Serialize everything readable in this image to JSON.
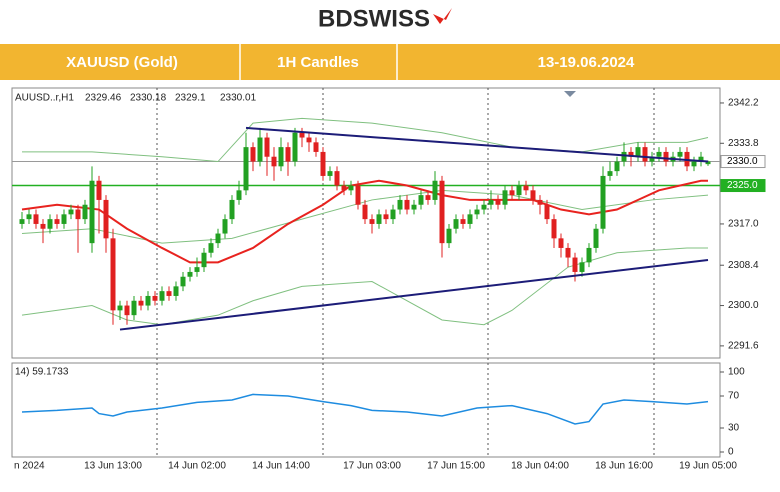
{
  "header": {
    "logo": "BDSWISS",
    "tabs": [
      "XAUUSD (Gold)",
      "1H Candles",
      "13-19.06.2024"
    ]
  },
  "chart_data": {
    "type": "candlestick",
    "symbol": "AUUSD..r,H1",
    "categories": [
      "n 2024",
      null,
      null,
      null,
      null,
      null,
      null,
      null,
      null,
      null,
      null,
      null,
      null,
      "13 Jun 13:00",
      null,
      null,
      null,
      null,
      null,
      null,
      null,
      null,
      null,
      null,
      null,
      "14 Jun 02:00",
      null,
      null,
      null,
      null,
      null,
      null,
      null,
      null,
      null,
      null,
      null,
      "14 Jun 14:00",
      null,
      null,
      null,
      null,
      null,
      null,
      null,
      null,
      null,
      null,
      null,
      null,
      "17 Jun 03:00",
      null,
      null,
      null,
      null,
      null,
      null,
      null,
      null,
      null,
      null,
      null,
      "17 Jun 15:00",
      null,
      null,
      null,
      null,
      null,
      null,
      null,
      null,
      null,
      null,
      null,
      "18 Jun 04:00",
      null,
      null,
      null,
      null,
      null,
      null,
      null,
      null,
      null,
      null,
      null,
      "18 Jun 16:00",
      null,
      null,
      null,
      null,
      null,
      null,
      null,
      null,
      null,
      null,
      null,
      "19 Jun 05:00"
    ],
    "ohlc": [
      [
        2317,
        2319.5,
        2316,
        2318
      ],
      [
        2318,
        2320,
        2317,
        2319
      ],
      [
        2319,
        2320,
        2316,
        2317
      ],
      [
        2317,
        2318,
        2313,
        2316
      ],
      [
        2316,
        2319,
        2315,
        2318
      ],
      [
        2318,
        2319,
        2316,
        2317
      ],
      [
        2317,
        2320,
        2316,
        2319
      ],
      [
        2319,
        2321,
        2318,
        2320
      ],
      [
        2320,
        2321,
        2311,
        2318
      ],
      [
        2318,
        2322,
        2317,
        2321
      ],
      [
        2313,
        2329,
        2311,
        2326
      ],
      [
        2326,
        2327,
        2315,
        2322
      ],
      [
        2322,
        2323,
        2311,
        2314
      ],
      [
        2314,
        2316,
        2296,
        2299
      ],
      [
        2299,
        2301,
        2297,
        2300
      ],
      [
        2300,
        2301,
        2296,
        2298
      ],
      [
        2298,
        2302,
        2297,
        2301
      ],
      [
        2301,
        2302,
        2299,
        2300
      ],
      [
        2300,
        2303,
        2299,
        2302
      ],
      [
        2302,
        2303,
        2300,
        2301
      ],
      [
        2301,
        2304,
        2300,
        2303
      ],
      [
        2303,
        2304,
        2301,
        2302
      ],
      [
        2302,
        2305,
        2301,
        2304
      ],
      [
        2304,
        2307,
        2303,
        2306
      ],
      [
        2306,
        2308,
        2305,
        2307
      ],
      [
        2307,
        2310,
        2306,
        2308
      ],
      [
        2308,
        2312,
        2307,
        2311
      ],
      [
        2311,
        2314,
        2310,
        2313
      ],
      [
        2313,
        2316,
        2312,
        2315
      ],
      [
        2315,
        2319,
        2314,
        2318
      ],
      [
        2318,
        2323,
        2317,
        2322
      ],
      [
        2322,
        2326,
        2321,
        2324
      ],
      [
        2324,
        2336,
        2323,
        2333
      ],
      [
        2333,
        2334,
        2328,
        2330
      ],
      [
        2330,
        2337,
        2329,
        2335
      ],
      [
        2335,
        2336,
        2327,
        2331
      ],
      [
        2331,
        2333,
        2326,
        2329
      ],
      [
        2329,
        2335,
        2328,
        2333
      ],
      [
        2333,
        2334,
        2327,
        2330
      ],
      [
        2330,
        2337,
        2329,
        2336
      ],
      [
        2336,
        2337,
        2333,
        2335
      ],
      [
        2335,
        2336,
        2332,
        2334
      ],
      [
        2334,
        2335,
        2331,
        2332
      ],
      [
        2332,
        2333,
        2326,
        2327
      ],
      [
        2327,
        2329,
        2326,
        2328
      ],
      [
        2328,
        2329,
        2324,
        2325
      ],
      [
        2325,
        2326,
        2323,
        2324
      ],
      [
        2324,
        2326,
        2323,
        2325
      ],
      [
        2325,
        2326,
        2320,
        2321
      ],
      [
        2321,
        2322,
        2317,
        2318
      ],
      [
        2318,
        2319,
        2315,
        2317
      ],
      [
        2317,
        2320,
        2316,
        2319
      ],
      [
        2319,
        2320,
        2317,
        2318
      ],
      [
        2318,
        2321,
        2317,
        2320
      ],
      [
        2320,
        2323,
        2319,
        2322
      ],
      [
        2322,
        2323,
        2319,
        2320
      ],
      [
        2320,
        2322,
        2319,
        2321
      ],
      [
        2321,
        2324,
        2320,
        2323
      ],
      [
        2323,
        2324,
        2321,
        2322
      ],
      [
        2322,
        2328,
        2321,
        2326
      ],
      [
        2326,
        2327,
        2310,
        2313
      ],
      [
        2313,
        2317,
        2312,
        2316
      ],
      [
        2316,
        2319,
        2315,
        2318
      ],
      [
        2318,
        2319,
        2316,
        2317
      ],
      [
        2317,
        2320,
        2316,
        2319
      ],
      [
        2319,
        2321,
        2318,
        2320
      ],
      [
        2320,
        2322,
        2319,
        2321
      ],
      [
        2321,
        2324,
        2320,
        2322
      ],
      [
        2322,
        2323,
        2320,
        2321
      ],
      [
        2321,
        2325,
        2320,
        2324
      ],
      [
        2324,
        2325,
        2322,
        2323
      ],
      [
        2323,
        2326,
        2322,
        2325
      ],
      [
        2325,
        2326,
        2323,
        2324
      ],
      [
        2324,
        2325,
        2321,
        2322
      ],
      [
        2322,
        2323,
        2319,
        2321
      ],
      [
        2321,
        2322,
        2317,
        2318
      ],
      [
        2318,
        2319,
        2312,
        2314
      ],
      [
        2314,
        2315,
        2310,
        2312
      ],
      [
        2312,
        2313,
        2308,
        2310
      ],
      [
        2310,
        2311,
        2305,
        2307
      ],
      [
        2307,
        2310,
        2306,
        2309
      ],
      [
        2309,
        2313,
        2308,
        2312
      ],
      [
        2312,
        2317,
        2311,
        2316
      ],
      [
        2316,
        2329,
        2315,
        2327
      ],
      [
        2327,
        2330,
        2326,
        2328
      ],
      [
        2328,
        2331,
        2327,
        2330
      ],
      [
        2330,
        2334,
        2329,
        2332
      ],
      [
        2332,
        2333,
        2329,
        2331
      ],
      [
        2331,
        2334,
        2330,
        2333
      ],
      [
        2333,
        2334,
        2329,
        2330
      ],
      [
        2330,
        2332,
        2329,
        2331
      ],
      [
        2331,
        2333,
        2330,
        2332
      ],
      [
        2332,
        2333,
        2329,
        2330
      ],
      [
        2330,
        2332,
        2329,
        2331
      ],
      [
        2331,
        2333,
        2330,
        2332
      ],
      [
        2332,
        2333,
        2328,
        2329
      ],
      [
        2329,
        2331,
        2328,
        2330
      ],
      [
        2330,
        2332,
        2329,
        2331
      ],
      [
        2329.46,
        2330.18,
        2329.1,
        2330.01
      ]
    ],
    "up_color": "#22a022",
    "down_color": "#e02020",
    "ylim": [
      2289.7,
      2344.9
    ],
    "yticks": [
      2342.2,
      2333.8,
      {
        "value": 2317.0,
        "label": "2317.0"
      },
      2308.4,
      {
        "value": 2300.0,
        "label": "2300.0"
      },
      2291.6
    ],
    "price_lines": [
      {
        "value": 2330.0,
        "label": "2330.0",
        "color": "#9a9a9a"
      },
      {
        "value": 2325.0,
        "label": "2325.0",
        "color": "#22b022"
      }
    ],
    "overlays": [
      {
        "color": "#80c080",
        "x": [
          0,
          10,
          20,
          28,
          33,
          40,
          50,
          60,
          70,
          80,
          88,
          95,
          98
        ],
        "values": [
          2332,
          2332,
          2331,
          2330,
          2338,
          2339,
          2338,
          2336,
          2333,
          2332,
          2334,
          2334,
          2335
        ]
      },
      {
        "color": "#80c080",
        "x": [
          0,
          10,
          20,
          30,
          40,
          50,
          60,
          70,
          80,
          90,
          98
        ],
        "values": [
          2315,
          2316,
          2313,
          2314,
          2318,
          2322,
          2324,
          2323,
          2320,
          2322,
          2323
        ]
      },
      {
        "color": "#80c080",
        "x": [
          0,
          10,
          15,
          20,
          28,
          33,
          40,
          50,
          60,
          66,
          70,
          78,
          85,
          95,
          98
        ],
        "values": [
          2298,
          2300,
          2297,
          2296,
          2298,
          2301,
          2304,
          2305,
          2297,
          2296,
          2299,
          2308,
          2311,
          2312,
          2312
        ]
      },
      {
        "color": "#e8231f",
        "x": [
          0,
          5,
          11,
          15,
          20,
          24,
          28,
          33,
          38,
          43,
          47,
          51,
          55,
          60,
          64,
          68,
          73,
          77,
          81,
          85,
          91,
          97,
          98
        ],
        "values": [
          2320,
          2321,
          2320,
          2316,
          2312,
          2309,
          2309,
          2312,
          2317,
          2321,
          2325,
          2326,
          2325,
          2323,
          2322,
          2322,
          2322,
          2320,
          2319,
          2320,
          2324,
          2326,
          2326
        ]
      }
    ],
    "trendlines": [
      {
        "color": "#1c1c78",
        "x": [
          32,
          98
        ],
        "values": [
          2337,
          2330
        ]
      },
      {
        "color": "#1c1c78",
        "x": [
          14,
          98
        ],
        "values": [
          2295,
          2309.5
        ]
      }
    ],
    "rsi": {
      "label": "14) 59.1733",
      "color": "#1e8ce0",
      "ylim": [
        0,
        100
      ],
      "yticks": [
        100,
        70,
        30,
        0
      ],
      "x": [
        0,
        5,
        10,
        11,
        13,
        15,
        20,
        25,
        30,
        33,
        38,
        43,
        47,
        50,
        55,
        60,
        65,
        70,
        75,
        79,
        81,
        83,
        86,
        90,
        95,
        98
      ],
      "values": [
        50,
        52,
        55,
        48,
        45,
        50,
        55,
        62,
        65,
        72,
        70,
        63,
        58,
        52,
        50,
        45,
        55,
        58,
        48,
        35,
        38,
        60,
        65,
        63,
        60,
        63
      ]
    }
  }
}
